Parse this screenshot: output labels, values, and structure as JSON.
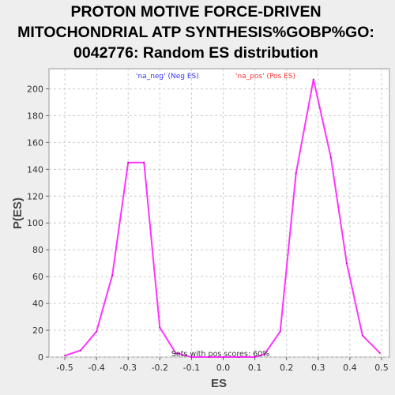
{
  "chart_data": {
    "type": "line",
    "title": [
      "PROTON MOTIVE FORCE-DRIVEN",
      "MITOCHONDRIAL ATP SYNTHESIS%GOBP%GO:",
      "0042776: Random ES distribution"
    ],
    "xlabel": "ES",
    "ylabel": "P(ES)",
    "xlim": [
      -0.55,
      0.525
    ],
    "ylim": [
      0,
      215
    ],
    "xticks": [
      "-0.5",
      "-0.4",
      "-0.3",
      "-0.2",
      "-0.1",
      "0.0",
      "0.1",
      "0.2",
      "0.3",
      "0.4",
      "0.5"
    ],
    "yticks": [
      "0",
      "20",
      "40",
      "60",
      "80",
      "100",
      "120",
      "140",
      "160",
      "180",
      "200"
    ],
    "grid": true,
    "legend": [
      {
        "label": "'na_neg' (Neg ES)",
        "color": "#3333ff"
      },
      {
        "label": "'na_pos' (Pos ES)",
        "color": "#ff3333"
      }
    ],
    "annotation": "Sets with pos scores: 60%",
    "line_color": "#ff33ff",
    "series": [
      {
        "x": [
          -0.5,
          -0.45,
          -0.4,
          -0.35,
          -0.3,
          -0.25,
          -0.2,
          -0.15,
          -0.1,
          0.0,
          0.05,
          0.1,
          0.13,
          0.18,
          0.23,
          0.285,
          0.34,
          0.39,
          0.44,
          0.495
        ],
        "y": [
          1,
          5,
          19,
          61,
          145,
          145,
          22,
          3,
          0,
          0,
          0,
          0,
          2,
          19,
          137,
          207,
          149,
          70,
          16,
          3
        ]
      }
    ]
  }
}
